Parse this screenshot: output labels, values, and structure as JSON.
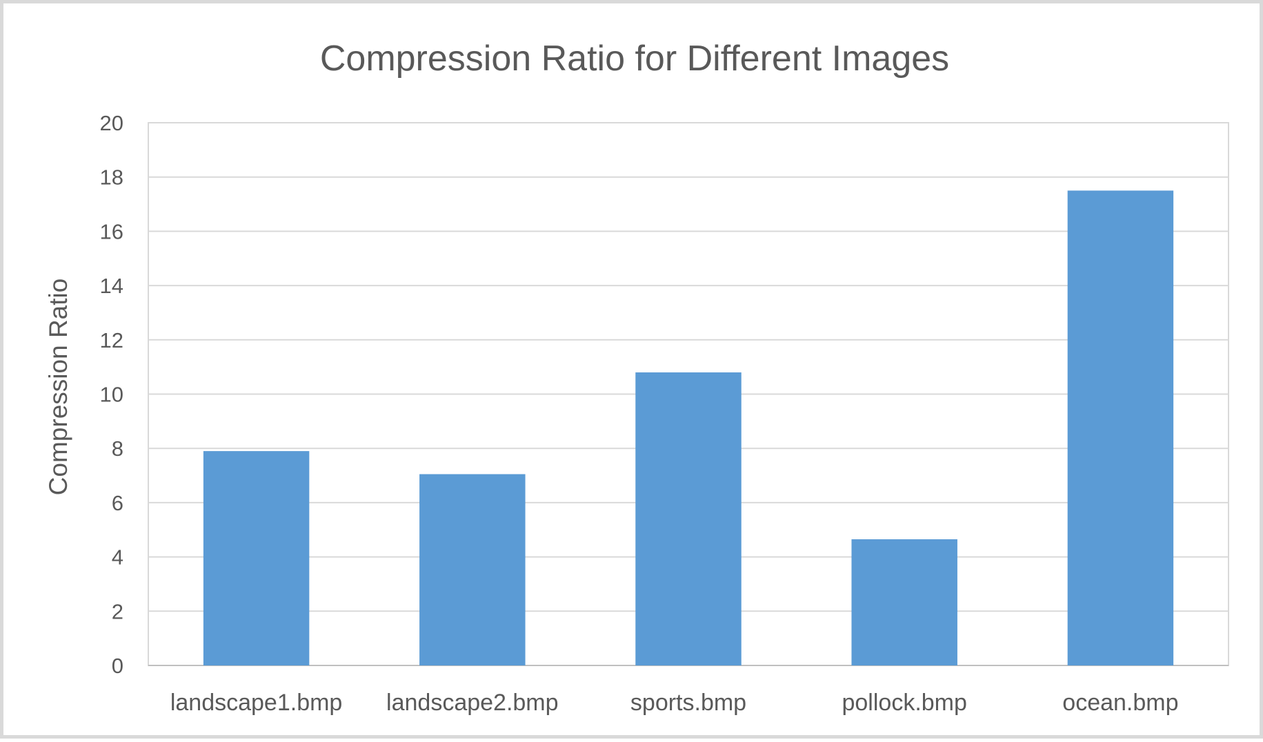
{
  "chart_data": {
    "type": "bar",
    "title": "Compression Ratio for Different Images",
    "xlabel": "",
    "ylabel": "Compression Ratio",
    "categories": [
      "landscape1.bmp",
      "landscape2.bmp",
      "sports.bmp",
      "pollock.bmp",
      "ocean.bmp"
    ],
    "values": [
      7.9,
      7.05,
      10.8,
      4.65,
      17.5
    ],
    "ylim": [
      0,
      20
    ],
    "yticks": [
      0,
      2,
      4,
      6,
      8,
      10,
      12,
      14,
      16,
      18,
      20
    ],
    "grid": true,
    "legend": "none",
    "bar_color": "#5b9bd5",
    "grid_color": "#d9d9d9",
    "text_color": "#595959"
  }
}
